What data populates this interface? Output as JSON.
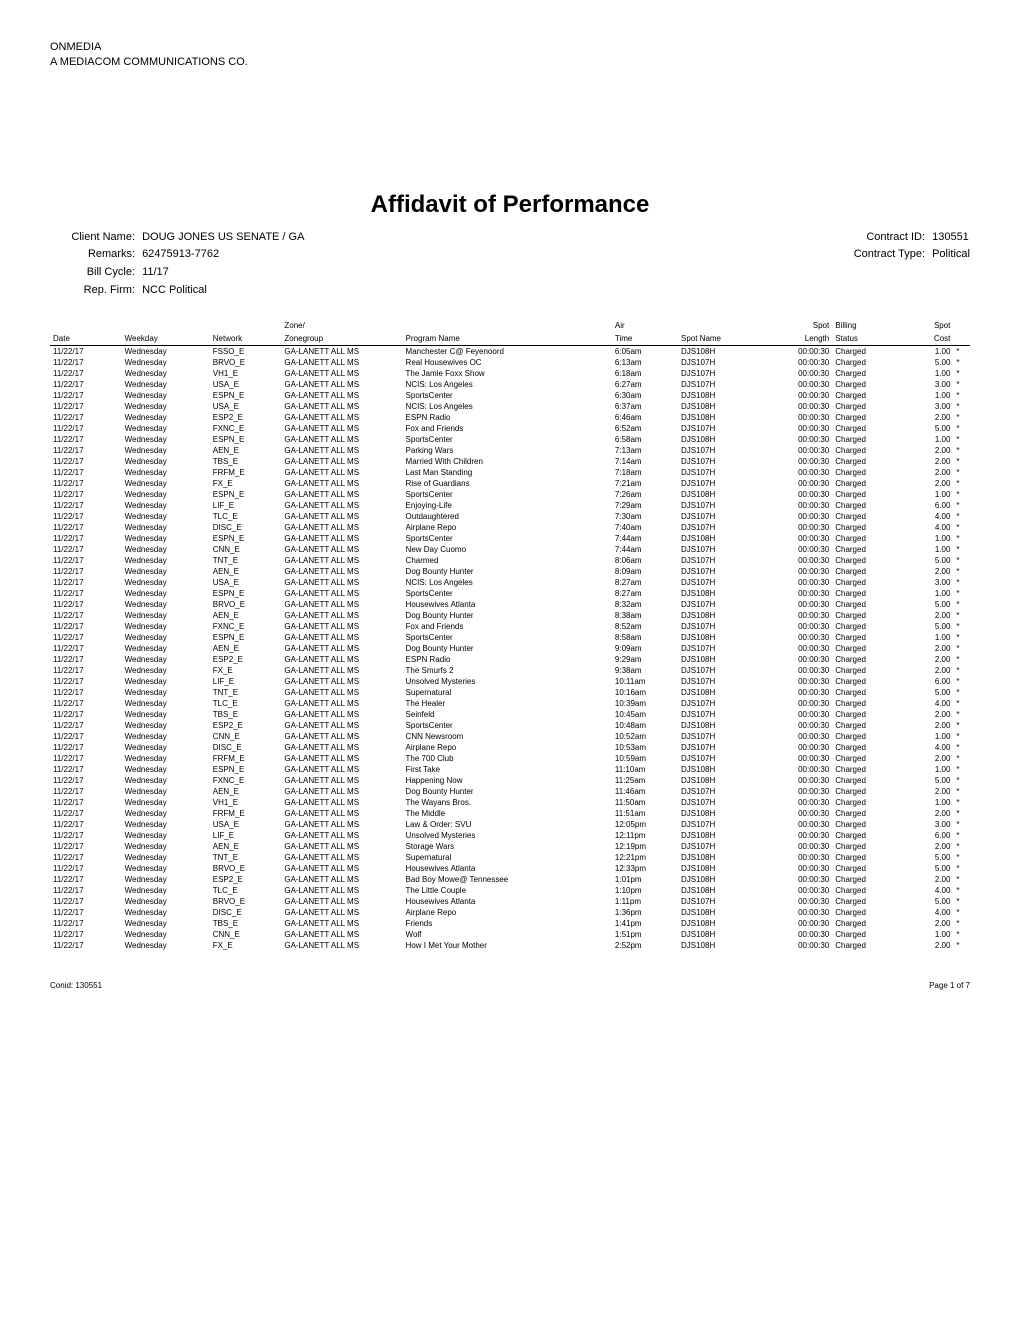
{
  "company": {
    "line1": "ONMEDIA",
    "line2": "A MEDIACOM COMMUNICATIONS CO."
  },
  "title": "Affidavit of Performance",
  "meta": {
    "client_label": "Client Name:",
    "client_value": "DOUG JONES US SENATE / GA",
    "remarks_label": "Remarks:",
    "remarks_value": "62475913-7762",
    "billcycle_label": "Bill Cycle:",
    "billcycle_value": "11/17",
    "repfirm_label": "Rep. Firm:",
    "repfirm_value": "NCC Political",
    "contractid_label": "Contract ID:",
    "contractid_value": "130551",
    "contracttype_label": "Contract Type:",
    "contracttype_value": "Political"
  },
  "headers": {
    "group_zone": "Zone/",
    "group_air": "Air",
    "group_spotlen": "Spot",
    "group_billing": "Billing",
    "group_spotcost": "Spot",
    "date": "Date",
    "weekday": "Weekday",
    "network": "Network",
    "zonegroup": "Zonegroup",
    "program": "Program Name",
    "time": "Time",
    "spotname": "Spot Name",
    "length": "Length",
    "status": "Status",
    "cost": "Cost"
  },
  "rows": [
    [
      "11/22/17",
      "Wednesday",
      "FSSO_E",
      "GA-LANETT ALL MS",
      "Manchester C@ Feyenoord",
      "6:05am",
      "DJS108H",
      "00:00:30",
      "Charged",
      "1.00",
      "*"
    ],
    [
      "11/22/17",
      "Wednesday",
      "BRVO_E",
      "GA-LANETT ALL MS",
      "Real Housewives OC",
      "6:13am",
      "DJS107H",
      "00:00:30",
      "Charged",
      "5.00",
      "*"
    ],
    [
      "11/22/17",
      "Wednesday",
      "VH1_E",
      "GA-LANETT ALL MS",
      "The Jamie Foxx Show",
      "6:18am",
      "DJS107H",
      "00:00:30",
      "Charged",
      "1.00",
      "*"
    ],
    [
      "11/22/17",
      "Wednesday",
      "USA_E",
      "GA-LANETT ALL MS",
      "NCIS: Los Angeles",
      "6:27am",
      "DJS107H",
      "00:00:30",
      "Charged",
      "3.00",
      "*"
    ],
    [
      "11/22/17",
      "Wednesday",
      "ESPN_E",
      "GA-LANETT ALL MS",
      "SportsCenter",
      "6:30am",
      "DJS108H",
      "00:00:30",
      "Charged",
      "1.00",
      "*"
    ],
    [
      "11/22/17",
      "Wednesday",
      "USA_E",
      "GA-LANETT ALL MS",
      "NCIS: Los Angeles",
      "6:37am",
      "DJS108H",
      "00:00:30",
      "Charged",
      "3.00",
      "*"
    ],
    [
      "11/22/17",
      "Wednesday",
      "ESP2_E",
      "GA-LANETT ALL MS",
      "ESPN Radio",
      "6:46am",
      "DJS108H",
      "00:00:30",
      "Charged",
      "2.00",
      "*"
    ],
    [
      "11/22/17",
      "Wednesday",
      "FXNC_E",
      "GA-LANETT ALL MS",
      "Fox and Friends",
      "6:52am",
      "DJS107H",
      "00:00:30",
      "Charged",
      "5.00",
      "*"
    ],
    [
      "11/22/17",
      "Wednesday",
      "ESPN_E",
      "GA-LANETT ALL MS",
      "SportsCenter",
      "6:58am",
      "DJS108H",
      "00:00:30",
      "Charged",
      "1.00",
      "*"
    ],
    [
      "11/22/17",
      "Wednesday",
      "AEN_E",
      "GA-LANETT ALL MS",
      "Parking Wars",
      "7:13am",
      "DJS107H",
      "00:00:30",
      "Charged",
      "2.00",
      "*"
    ],
    [
      "11/22/17",
      "Wednesday",
      "TBS_E",
      "GA-LANETT ALL MS",
      "Married With Children",
      "7:14am",
      "DJS107H",
      "00:00:30",
      "Charged",
      "2.00",
      "*"
    ],
    [
      "11/22/17",
      "Wednesday",
      "FRFM_E",
      "GA-LANETT ALL MS",
      "Last Man Standing",
      "7:18am",
      "DJS107H",
      "00:00:30",
      "Charged",
      "2.00",
      "*"
    ],
    [
      "11/22/17",
      "Wednesday",
      "FX_E",
      "GA-LANETT ALL MS",
      "Rise of Guardians",
      "7:21am",
      "DJS107H",
      "00:00:30",
      "Charged",
      "2.00",
      "*"
    ],
    [
      "11/22/17",
      "Wednesday",
      "ESPN_E",
      "GA-LANETT ALL MS",
      "SportsCenter",
      "7:26am",
      "DJS108H",
      "00:00:30",
      "Charged",
      "1.00",
      "*"
    ],
    [
      "11/22/17",
      "Wednesday",
      "LIF_E",
      "GA-LANETT ALL MS",
      "Enjoying-Life",
      "7:29am",
      "DJS107H",
      "00:00:30",
      "Charged",
      "6.00",
      "*"
    ],
    [
      "11/22/17",
      "Wednesday",
      "TLC_E",
      "GA-LANETT ALL MS",
      "Outdaughtered",
      "7:30am",
      "DJS107H",
      "00:00:30",
      "Charged",
      "4.00",
      "*"
    ],
    [
      "11/22/17",
      "Wednesday",
      "DISC_E",
      "GA-LANETT ALL MS",
      "Airplane Repo",
      "7:40am",
      "DJS107H",
      "00:00:30",
      "Charged",
      "4.00",
      "*"
    ],
    [
      "11/22/17",
      "Wednesday",
      "ESPN_E",
      "GA-LANETT ALL MS",
      "SportsCenter",
      "7:44am",
      "DJS108H",
      "00:00:30",
      "Charged",
      "1.00",
      "*"
    ],
    [
      "11/22/17",
      "Wednesday",
      "CNN_E",
      "GA-LANETT ALL MS",
      "New Day Cuomo",
      "7:44am",
      "DJS107H",
      "00:00:30",
      "Charged",
      "1.00",
      "*"
    ],
    [
      "11/22/17",
      "Wednesday",
      "TNT_E",
      "GA-LANETT ALL MS",
      "Charmed",
      "8:06am",
      "DJS107H",
      "00:00:30",
      "Charged",
      "5.00",
      "*"
    ],
    [
      "11/22/17",
      "Wednesday",
      "AEN_E",
      "GA-LANETT ALL MS",
      "Dog Bounty Hunter",
      "8:09am",
      "DJS107H",
      "00:00:30",
      "Charged",
      "2.00",
      "*"
    ],
    [
      "11/22/17",
      "Wednesday",
      "USA_E",
      "GA-LANETT ALL MS",
      "NCIS: Los Angeles",
      "8:27am",
      "DJS107H",
      "00:00:30",
      "Charged",
      "3.00",
      "*"
    ],
    [
      "11/22/17",
      "Wednesday",
      "ESPN_E",
      "GA-LANETT ALL MS",
      "SportsCenter",
      "8:27am",
      "DJS108H",
      "00:00:30",
      "Charged",
      "1.00",
      "*"
    ],
    [
      "11/22/17",
      "Wednesday",
      "BRVO_E",
      "GA-LANETT ALL MS",
      "Housewives Atlanta",
      "8:32am",
      "DJS107H",
      "00:00:30",
      "Charged",
      "5.00",
      "*"
    ],
    [
      "11/22/17",
      "Wednesday",
      "AEN_E",
      "GA-LANETT ALL MS",
      "Dog Bounty Hunter",
      "8:38am",
      "DJS108H",
      "00:00:30",
      "Charged",
      "2.00",
      "*"
    ],
    [
      "11/22/17",
      "Wednesday",
      "FXNC_E",
      "GA-LANETT ALL MS",
      "Fox and Friends",
      "8:52am",
      "DJS107H",
      "00:00:30",
      "Charged",
      "5.00",
      "*"
    ],
    [
      "11/22/17",
      "Wednesday",
      "ESPN_E",
      "GA-LANETT ALL MS",
      "SportsCenter",
      "8:58am",
      "DJS108H",
      "00:00:30",
      "Charged",
      "1.00",
      "*"
    ],
    [
      "11/22/17",
      "Wednesday",
      "AEN_E",
      "GA-LANETT ALL MS",
      "Dog Bounty Hunter",
      "9:09am",
      "DJS107H",
      "00:00:30",
      "Charged",
      "2.00",
      "*"
    ],
    [
      "11/22/17",
      "Wednesday",
      "ESP2_E",
      "GA-LANETT ALL MS",
      "ESPN Radio",
      "9:29am",
      "DJS108H",
      "00:00:30",
      "Charged",
      "2.00",
      "*"
    ],
    [
      "11/22/17",
      "Wednesday",
      "FX_E",
      "GA-LANETT ALL MS",
      "The Smurfs 2",
      "9:38am",
      "DJS107H",
      "00:00:30",
      "Charged",
      "2.00",
      "*"
    ],
    [
      "11/22/17",
      "Wednesday",
      "LIF_E",
      "GA-LANETT ALL MS",
      "Unsolved Mysteries",
      "10:11am",
      "DJS107H",
      "00:00:30",
      "Charged",
      "6.00",
      "*"
    ],
    [
      "11/22/17",
      "Wednesday",
      "TNT_E",
      "GA-LANETT ALL MS",
      "Supernatural",
      "10:16am",
      "DJS108H",
      "00:00:30",
      "Charged",
      "5.00",
      "*"
    ],
    [
      "11/22/17",
      "Wednesday",
      "TLC_E",
      "GA-LANETT ALL MS",
      "The Healer",
      "10:39am",
      "DJS107H",
      "00:00:30",
      "Charged",
      "4.00",
      "*"
    ],
    [
      "11/22/17",
      "Wednesday",
      "TBS_E",
      "GA-LANETT ALL MS",
      "Seinfeld",
      "10:45am",
      "DJS107H",
      "00:00:30",
      "Charged",
      "2.00",
      "*"
    ],
    [
      "11/22/17",
      "Wednesday",
      "ESP2_E",
      "GA-LANETT ALL MS",
      "SportsCenter",
      "10:48am",
      "DJS108H",
      "00:00:30",
      "Charged",
      "2.00",
      "*"
    ],
    [
      "11/22/17",
      "Wednesday",
      "CNN_E",
      "GA-LANETT ALL MS",
      "CNN Newsroom",
      "10:52am",
      "DJS107H",
      "00:00:30",
      "Charged",
      "1.00",
      "*"
    ],
    [
      "11/22/17",
      "Wednesday",
      "DISC_E",
      "GA-LANETT ALL MS",
      "Airplane Repo",
      "10:53am",
      "DJS107H",
      "00:00:30",
      "Charged",
      "4.00",
      "*"
    ],
    [
      "11/22/17",
      "Wednesday",
      "FRFM_E",
      "GA-LANETT ALL MS",
      "The 700 Club",
      "10:59am",
      "DJS107H",
      "00:00:30",
      "Charged",
      "2.00",
      "*"
    ],
    [
      "11/22/17",
      "Wednesday",
      "ESPN_E",
      "GA-LANETT ALL MS",
      "First Take",
      "11:10am",
      "DJS108H",
      "00:00:30",
      "Charged",
      "1.00",
      "*"
    ],
    [
      "11/22/17",
      "Wednesday",
      "FXNC_E",
      "GA-LANETT ALL MS",
      "Happening Now",
      "11:25am",
      "DJS108H",
      "00:00:30",
      "Charged",
      "5.00",
      "*"
    ],
    [
      "11/22/17",
      "Wednesday",
      "AEN_E",
      "GA-LANETT ALL MS",
      "Dog Bounty Hunter",
      "11:46am",
      "DJS107H",
      "00:00:30",
      "Charged",
      "2.00",
      "*"
    ],
    [
      "11/22/17",
      "Wednesday",
      "VH1_E",
      "GA-LANETT ALL MS",
      "The Wayans Bros.",
      "11:50am",
      "DJS107H",
      "00:00:30",
      "Charged",
      "1.00",
      "*"
    ],
    [
      "11/22/17",
      "Wednesday",
      "FRFM_E",
      "GA-LANETT ALL MS",
      "The Middle",
      "11:51am",
      "DJS108H",
      "00:00:30",
      "Charged",
      "2.00",
      "*"
    ],
    [
      "11/22/17",
      "Wednesday",
      "USA_E",
      "GA-LANETT ALL MS",
      "Law & Order: SVU",
      "12:05pm",
      "DJS107H",
      "00:00:30",
      "Charged",
      "3.00",
      "*"
    ],
    [
      "11/22/17",
      "Wednesday",
      "LIF_E",
      "GA-LANETT ALL MS",
      "Unsolved Mysteries",
      "12:11pm",
      "DJS108H",
      "00:00:30",
      "Charged",
      "6.00",
      "*"
    ],
    [
      "11/22/17",
      "Wednesday",
      "AEN_E",
      "GA-LANETT ALL MS",
      "Storage Wars",
      "12:19pm",
      "DJS107H",
      "00:00:30",
      "Charged",
      "2.00",
      "*"
    ],
    [
      "11/22/17",
      "Wednesday",
      "TNT_E",
      "GA-LANETT ALL MS",
      "Supernatural",
      "12:21pm",
      "DJS108H",
      "00:00:30",
      "Charged",
      "5.00",
      "*"
    ],
    [
      "11/22/17",
      "Wednesday",
      "BRVO_E",
      "GA-LANETT ALL MS",
      "Housewives Atlanta",
      "12:33pm",
      "DJS108H",
      "00:00:30",
      "Charged",
      "5.00",
      "*"
    ],
    [
      "11/22/17",
      "Wednesday",
      "ESP2_E",
      "GA-LANETT ALL MS",
      "Bad Boy Mowe@ Tennessee",
      "1:01pm",
      "DJS108H",
      "00:00:30",
      "Charged",
      "2.00",
      "*"
    ],
    [
      "11/22/17",
      "Wednesday",
      "TLC_E",
      "GA-LANETT ALL MS",
      "The Little Couple",
      "1:10pm",
      "DJS108H",
      "00:00:30",
      "Charged",
      "4.00",
      "*"
    ],
    [
      "11/22/17",
      "Wednesday",
      "BRVO_E",
      "GA-LANETT ALL MS",
      "Housewives Atlanta",
      "1:11pm",
      "DJS107H",
      "00:00:30",
      "Charged",
      "5.00",
      "*"
    ],
    [
      "11/22/17",
      "Wednesday",
      "DISC_E",
      "GA-LANETT ALL MS",
      "Airplane Repo",
      "1:36pm",
      "DJS108H",
      "00:00:30",
      "Charged",
      "4.00",
      "*"
    ],
    [
      "11/22/17",
      "Wednesday",
      "TBS_E",
      "GA-LANETT ALL MS",
      "Friends",
      "1:41pm",
      "DJS108H",
      "00:00:30",
      "Charged",
      "2.00",
      "*"
    ],
    [
      "11/22/17",
      "Wednesday",
      "CNN_E",
      "GA-LANETT ALL MS",
      "Wolf",
      "1:51pm",
      "DJS108H",
      "00:00:30",
      "Charged",
      "1.00",
      "*"
    ],
    [
      "11/22/17",
      "Wednesday",
      "FX_E",
      "GA-LANETT ALL MS",
      "How I Met Your Mother",
      "2:52pm",
      "DJS108H",
      "00:00:30",
      "Charged",
      "2.00",
      "*"
    ]
  ],
  "footer": {
    "left": "Conid: 130551",
    "right": "Page 1 of 7"
  }
}
